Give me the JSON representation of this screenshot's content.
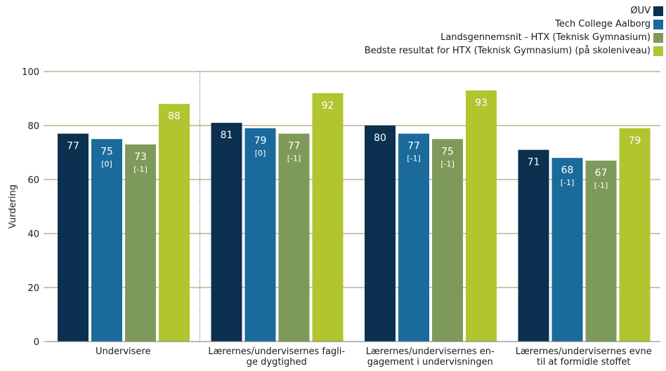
{
  "chart_data": {
    "type": "bar",
    "ylabel": "Vurdering",
    "xlabel": "",
    "ylim": [
      0,
      100
    ],
    "yticks": [
      0,
      20,
      40,
      60,
      80,
      100
    ],
    "grid": "horizontal",
    "legend_position": "top-right",
    "categories": [
      [
        "Undervisere"
      ],
      [
        "Lærernes/undervisernes fagli-",
        "ge dygtighed"
      ],
      [
        "Lærernes/undervisernes en-",
        "gagement i undervisningen"
      ],
      [
        "Lærernes/undervisernes evne",
        "til at formidle stoffet"
      ]
    ],
    "series": [
      {
        "name": "ØUV",
        "color": "#0b3050",
        "values": [
          77,
          81,
          80,
          71
        ],
        "labels": [
          "77",
          "81",
          "80",
          "71"
        ],
        "diffs": [
          "",
          "",
          "",
          ""
        ]
      },
      {
        "name": "Tech College Aalborg",
        "color": "#1a6a9c",
        "values": [
          75,
          79,
          77,
          68
        ],
        "labels": [
          "75",
          "79",
          "77",
          "68"
        ],
        "diffs": [
          "[0]",
          "[0]",
          "[-1]",
          "[-1]"
        ]
      },
      {
        "name": "Landsgennemsnit - HTX (Teknisk Gymnasium)",
        "color": "#7e9a5a",
        "values": [
          73,
          77,
          75,
          67
        ],
        "labels": [
          "73",
          "77",
          "75",
          "67"
        ],
        "diffs": [
          "[-1]",
          "[-1]",
          "[-1]",
          "[-1]"
        ]
      },
      {
        "name": "Bedste resultat for HTX (Teknisk Gymnasium) (på skoleniveau)",
        "color": "#b0c52e",
        "values": [
          88,
          92,
          93,
          79
        ],
        "labels": [
          "88",
          "92",
          "93",
          "79"
        ],
        "diffs": [
          "",
          "",
          "",
          ""
        ]
      }
    ]
  }
}
